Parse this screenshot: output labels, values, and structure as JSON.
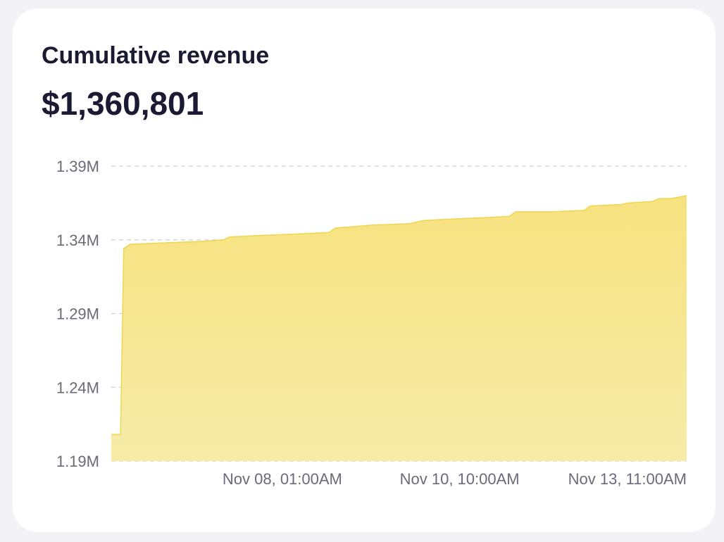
{
  "card": {
    "title": "Cumulative revenue",
    "value": "$1,360,801"
  },
  "colors": {
    "area_fill_top": "#f7e27f",
    "area_fill_bottom": "#f6eca8",
    "line": "#efd64f",
    "grid": "#cfcfd6",
    "text": "#1a1a33",
    "tick_text": "#6b6b78"
  },
  "chart_data": {
    "type": "area",
    "title": "",
    "xlabel": "",
    "ylabel": "",
    "ylim": [
      1190000,
      1390000
    ],
    "grid": "horizontal dashed",
    "y_ticks": [
      {
        "value": 1390000,
        "label": "1.39M"
      },
      {
        "value": 1340000,
        "label": "1.34M"
      },
      {
        "value": 1290000,
        "label": "1.29M"
      },
      {
        "value": 1240000,
        "label": "1.24M"
      },
      {
        "value": 1190000,
        "label": "1.19M"
      }
    ],
    "x_range": [
      "2023-11-05T18:00",
      "2023-11-13T11:00"
    ],
    "x_ticks": [
      {
        "value": "2023-11-08T01:00",
        "label": "Nov 08, 01:00AM"
      },
      {
        "value": "2023-11-10T10:00",
        "label": "Nov 10, 10:00AM"
      },
      {
        "value": "2023-11-13T11:00",
        "label": "Nov 13, 11:00AM"
      }
    ],
    "series": [
      {
        "points": [
          [
            "2023-11-05T18:00",
            1208000
          ],
          [
            "2023-11-05T21:00",
            1208000
          ],
          [
            "2023-11-05T22:00",
            1334000
          ],
          [
            "2023-11-06T00:00",
            1337000
          ],
          [
            "2023-11-06T12:00",
            1338000
          ],
          [
            "2023-11-07T00:00",
            1339000
          ],
          [
            "2023-11-07T06:00",
            1340000
          ],
          [
            "2023-11-07T08:00",
            1342000
          ],
          [
            "2023-11-07T18:00",
            1343000
          ],
          [
            "2023-11-08T06:00",
            1344000
          ],
          [
            "2023-11-08T16:00",
            1345000
          ],
          [
            "2023-11-08T18:00",
            1348000
          ],
          [
            "2023-11-09T06:00",
            1350000
          ],
          [
            "2023-11-09T18:00",
            1351000
          ],
          [
            "2023-11-09T22:00",
            1353000
          ],
          [
            "2023-11-10T06:00",
            1354000
          ],
          [
            "2023-11-10T18:00",
            1355000
          ],
          [
            "2023-11-11T02:00",
            1356000
          ],
          [
            "2023-11-11T04:00",
            1359000
          ],
          [
            "2023-11-11T16:00",
            1359000
          ],
          [
            "2023-11-12T02:00",
            1360000
          ],
          [
            "2023-11-12T04:00",
            1363000
          ],
          [
            "2023-11-12T14:00",
            1364000
          ],
          [
            "2023-11-12T16:00",
            1365000
          ],
          [
            "2023-11-13T00:00",
            1366000
          ],
          [
            "2023-11-13T02:00",
            1368000
          ],
          [
            "2023-11-13T06:00",
            1368000
          ],
          [
            "2023-11-13T11:00",
            1370000
          ]
        ]
      }
    ]
  }
}
